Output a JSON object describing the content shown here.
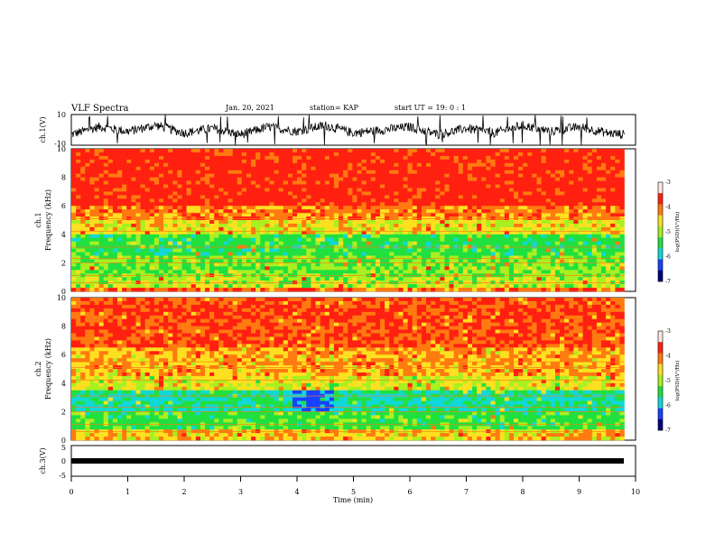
{
  "header": {
    "title": "VLF Spectra",
    "date": "Jan. 20, 2021",
    "station": "station= KAP",
    "start": "start UT =  19: 0 : 1"
  },
  "colors": {
    "red": "#ff2010",
    "orange": "#ff7a10",
    "yellow": "#ffe020",
    "lightgreen": "#a8f020",
    "green": "#20e040",
    "cyan": "#10d8d8",
    "blue": "#1840ff",
    "darkblue": "#000080",
    "white": "#ffe8e0"
  },
  "chart_data": [
    {
      "type": "line",
      "name": "ch1-waveform",
      "ylabel": "ch.1(V)",
      "xlim": [
        0,
        10
      ],
      "ylim": [
        -10,
        10
      ],
      "y_ticks": [
        "10",
        "-10"
      ],
      "series": [
        {
          "x": [
            0,
            0.5,
            1,
            1.5,
            2,
            2.5,
            3,
            3.5,
            4,
            4.5,
            5,
            5.5,
            6,
            6.5,
            7,
            7.5,
            8,
            8.5,
            9,
            9.5,
            9.8
          ],
          "y": [
            -3,
            2,
            -1,
            3,
            -2,
            1,
            -3,
            2,
            -1,
            3,
            -2,
            0,
            2,
            -3,
            1,
            -2,
            3,
            -1,
            2,
            -2,
            -3
          ]
        }
      ]
    },
    {
      "type": "heatmap",
      "name": "ch1-spectrogram",
      "ylabel": "Frequency (kHz)",
      "channel_label": "ch.1",
      "xlim": [
        0,
        10
      ],
      "ylim": [
        0,
        10
      ],
      "y_ticks": [
        "0",
        "2",
        "4",
        "6",
        "8",
        "10"
      ],
      "colorbar": {
        "label": "log(PSD)(V²/Hz)",
        "range": [
          -7,
          -3
        ],
        "ticks": [
          "-3",
          "-4",
          "-5",
          "-6",
          "-7"
        ]
      }
    },
    {
      "type": "heatmap",
      "name": "ch2-spectrogram",
      "ylabel": "Frequency (kHz)",
      "channel_label": "ch.2",
      "xlim": [
        0,
        10
      ],
      "ylim": [
        0,
        10
      ],
      "y_ticks": [
        "0",
        "2",
        "4",
        "6",
        "8",
        "10"
      ],
      "colorbar": {
        "label": "log(PSD)(V²/Hz)",
        "range": [
          -7,
          -3
        ],
        "ticks": [
          "-3",
          "-4",
          "-5",
          "-6",
          "-7"
        ]
      }
    },
    {
      "type": "line",
      "name": "ch3-waveform",
      "ylabel": "ch.3(V)",
      "xlim": [
        0,
        10
      ],
      "ylim": [
        -5,
        5
      ],
      "y_ticks": [
        "5",
        "0",
        "-5"
      ],
      "series": [
        {
          "x": [
            0,
            9.8
          ],
          "y": [
            0,
            0
          ]
        }
      ]
    }
  ],
  "x_axis": {
    "label": "Time (min)",
    "ticks": [
      "0",
      "1",
      "2",
      "3",
      "4",
      "5",
      "6",
      "7",
      "8",
      "9",
      "10"
    ]
  }
}
